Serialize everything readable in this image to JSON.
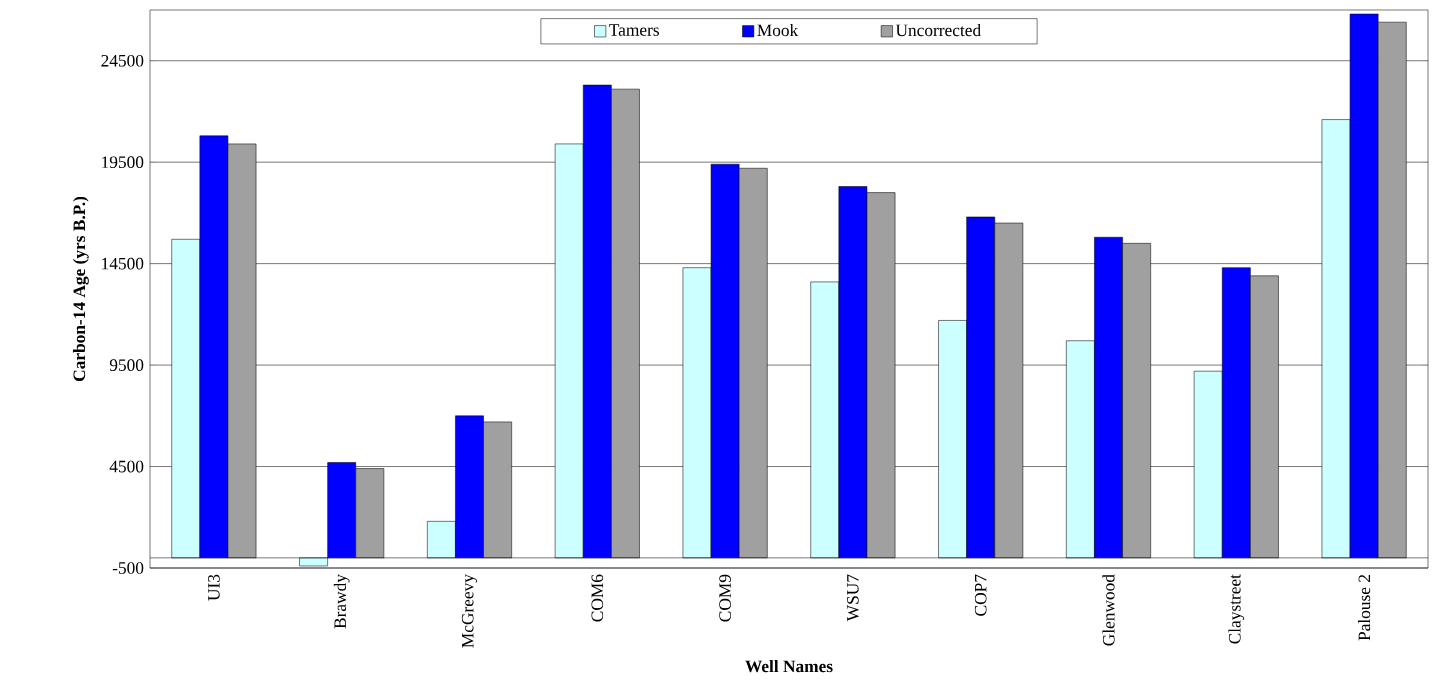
{
  "chart_data": {
    "type": "bar",
    "xlabel": "Well Names",
    "ylabel": "Carbon-14 Age (yrs B.P.)",
    "categories": [
      "UI3",
      "Brawdy",
      "McGreevy",
      "COM6",
      "COM9",
      "WSU7",
      "COP7",
      "Glenwood",
      "Claystreet",
      "Palouse 2"
    ],
    "series": [
      {
        "name": "Tamers",
        "color": "#ccffff",
        "values": [
          15700,
          -400,
          1800,
          20400,
          14300,
          13600,
          11700,
          10700,
          9200,
          21600
        ]
      },
      {
        "name": "Mook",
        "color": "#0000ff",
        "values": [
          20800,
          4700,
          7000,
          23300,
          19400,
          18300,
          16800,
          15800,
          14300,
          26800
        ]
      },
      {
        "name": "Uncorrected",
        "color": "#a0a0a0",
        "values": [
          20400,
          4400,
          6700,
          23100,
          19200,
          18000,
          16500,
          15500,
          13900,
          26400
        ]
      }
    ],
    "ylim": [
      -500,
      27000
    ],
    "yticks": [
      -500,
      4500,
      9500,
      14500,
      19500,
      24500
    ],
    "grid": "y",
    "legend": "top"
  }
}
